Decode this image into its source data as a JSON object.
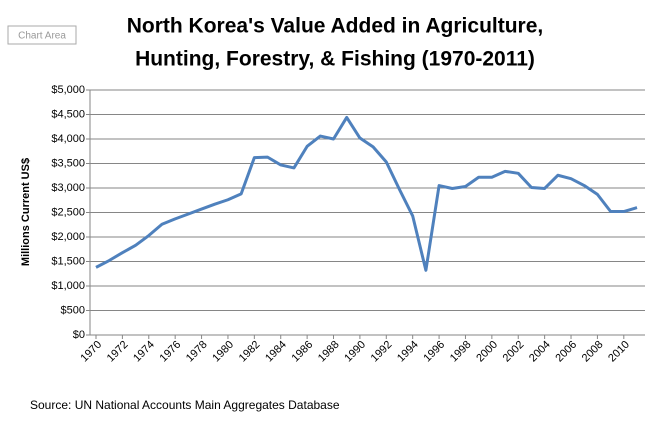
{
  "ui_label": "Chart Area",
  "chart_data": {
    "type": "line",
    "title": [
      "North Korea's Value Added in Agriculture,",
      "Hunting, Forestry, & Fishing (1970-2011)"
    ],
    "y_label": "Millions Current US$",
    "source": "Source:  UN National Accounts Main Aggregates Database",
    "x": [
      1970,
      1971,
      1972,
      1973,
      1974,
      1975,
      1976,
      1977,
      1978,
      1979,
      1980,
      1981,
      1982,
      1983,
      1984,
      1985,
      1986,
      1987,
      1988,
      1989,
      1990,
      1991,
      1992,
      1993,
      1994,
      1995,
      1996,
      1997,
      1998,
      1999,
      2000,
      2001,
      2002,
      2003,
      2004,
      2005,
      2006,
      2007,
      2008,
      2009,
      2010,
      2011
    ],
    "xlim": [
      1970,
      2011
    ],
    "xticks": [
      1970,
      1972,
      1974,
      1976,
      1978,
      1980,
      1982,
      1984,
      1986,
      1988,
      1990,
      1992,
      1994,
      1996,
      1998,
      2000,
      2002,
      2004,
      2006,
      2008,
      2010
    ],
    "series": [
      {
        "name": "Value Added",
        "color": "#4f81bd",
        "values": [
          1380,
          1520,
          1680,
          1830,
          2030,
          2260,
          2370,
          2470,
          2570,
          2670,
          2760,
          2880,
          3620,
          3630,
          3470,
          3410,
          3850,
          4060,
          4000,
          4440,
          4020,
          3840,
          3530,
          2970,
          2430,
          1320,
          3050,
          2990,
          3030,
          3220,
          3220,
          3340,
          3300,
          3010,
          2990,
          3260,
          3190,
          3050,
          2870,
          2520,
          2520,
          2600
        ]
      }
    ],
    "ylim": [
      0,
      5000
    ],
    "yticks": [
      {
        "value": 0,
        "label": "$0"
      },
      {
        "value": 500,
        "label": "$500"
      },
      {
        "value": 1000,
        "label": "$1,000"
      },
      {
        "value": 1500,
        "label": "$1,500"
      },
      {
        "value": 2000,
        "label": "$2,000"
      },
      {
        "value": 2500,
        "label": "$2,500"
      },
      {
        "value": 3000,
        "label": "$3,000"
      },
      {
        "value": 3500,
        "label": "$3,500"
      },
      {
        "value": 4000,
        "label": "$4,000"
      },
      {
        "value": 4500,
        "label": "$4,500"
      },
      {
        "value": 5000,
        "label": "$5,000"
      }
    ],
    "grid": true
  }
}
